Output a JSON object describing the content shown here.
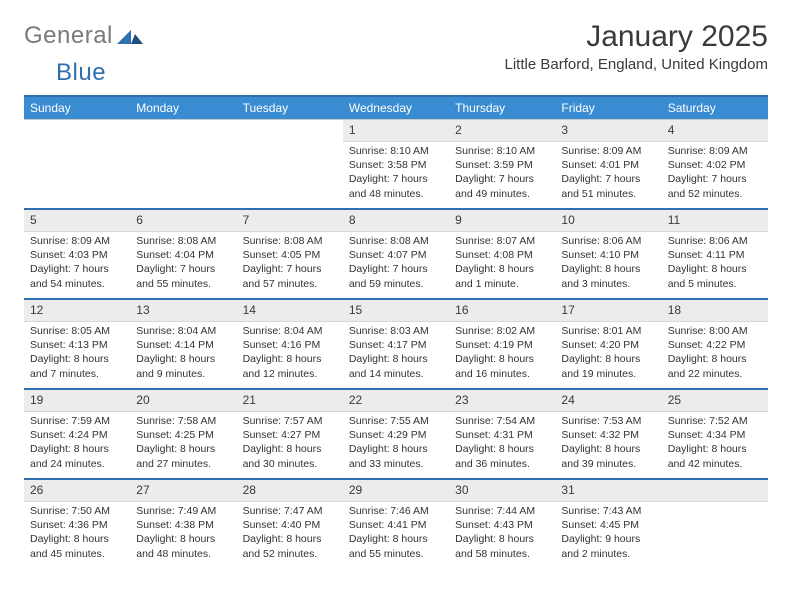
{
  "brand": {
    "text1": "General",
    "text2": "Blue"
  },
  "title": "January 2025",
  "subtitle": "Little Barford, England, United Kingdom",
  "colors": {
    "header_bg": "#3a8cd2",
    "accent_rule": "#2f6fb0",
    "daynum_bg": "#ececec",
    "text": "#333333"
  },
  "weekdays": [
    "Sunday",
    "Monday",
    "Tuesday",
    "Wednesday",
    "Thursday",
    "Friday",
    "Saturday"
  ],
  "weeks": [
    [
      null,
      null,
      null,
      {
        "n": "1",
        "sunrise": "8:10 AM",
        "sunset": "3:58 PM",
        "daylight": "7 hours and 48 minutes."
      },
      {
        "n": "2",
        "sunrise": "8:10 AM",
        "sunset": "3:59 PM",
        "daylight": "7 hours and 49 minutes."
      },
      {
        "n": "3",
        "sunrise": "8:09 AM",
        "sunset": "4:01 PM",
        "daylight": "7 hours and 51 minutes."
      },
      {
        "n": "4",
        "sunrise": "8:09 AM",
        "sunset": "4:02 PM",
        "daylight": "7 hours and 52 minutes."
      }
    ],
    [
      {
        "n": "5",
        "sunrise": "8:09 AM",
        "sunset": "4:03 PM",
        "daylight": "7 hours and 54 minutes."
      },
      {
        "n": "6",
        "sunrise": "8:08 AM",
        "sunset": "4:04 PM",
        "daylight": "7 hours and 55 minutes."
      },
      {
        "n": "7",
        "sunrise": "8:08 AM",
        "sunset": "4:05 PM",
        "daylight": "7 hours and 57 minutes."
      },
      {
        "n": "8",
        "sunrise": "8:08 AM",
        "sunset": "4:07 PM",
        "daylight": "7 hours and 59 minutes."
      },
      {
        "n": "9",
        "sunrise": "8:07 AM",
        "sunset": "4:08 PM",
        "daylight": "8 hours and 1 minute."
      },
      {
        "n": "10",
        "sunrise": "8:06 AM",
        "sunset": "4:10 PM",
        "daylight": "8 hours and 3 minutes."
      },
      {
        "n": "11",
        "sunrise": "8:06 AM",
        "sunset": "4:11 PM",
        "daylight": "8 hours and 5 minutes."
      }
    ],
    [
      {
        "n": "12",
        "sunrise": "8:05 AM",
        "sunset": "4:13 PM",
        "daylight": "8 hours and 7 minutes."
      },
      {
        "n": "13",
        "sunrise": "8:04 AM",
        "sunset": "4:14 PM",
        "daylight": "8 hours and 9 minutes."
      },
      {
        "n": "14",
        "sunrise": "8:04 AM",
        "sunset": "4:16 PM",
        "daylight": "8 hours and 12 minutes."
      },
      {
        "n": "15",
        "sunrise": "8:03 AM",
        "sunset": "4:17 PM",
        "daylight": "8 hours and 14 minutes."
      },
      {
        "n": "16",
        "sunrise": "8:02 AM",
        "sunset": "4:19 PM",
        "daylight": "8 hours and 16 minutes."
      },
      {
        "n": "17",
        "sunrise": "8:01 AM",
        "sunset": "4:20 PM",
        "daylight": "8 hours and 19 minutes."
      },
      {
        "n": "18",
        "sunrise": "8:00 AM",
        "sunset": "4:22 PM",
        "daylight": "8 hours and 22 minutes."
      }
    ],
    [
      {
        "n": "19",
        "sunrise": "7:59 AM",
        "sunset": "4:24 PM",
        "daylight": "8 hours and 24 minutes."
      },
      {
        "n": "20",
        "sunrise": "7:58 AM",
        "sunset": "4:25 PM",
        "daylight": "8 hours and 27 minutes."
      },
      {
        "n": "21",
        "sunrise": "7:57 AM",
        "sunset": "4:27 PM",
        "daylight": "8 hours and 30 minutes."
      },
      {
        "n": "22",
        "sunrise": "7:55 AM",
        "sunset": "4:29 PM",
        "daylight": "8 hours and 33 minutes."
      },
      {
        "n": "23",
        "sunrise": "7:54 AM",
        "sunset": "4:31 PM",
        "daylight": "8 hours and 36 minutes."
      },
      {
        "n": "24",
        "sunrise": "7:53 AM",
        "sunset": "4:32 PM",
        "daylight": "8 hours and 39 minutes."
      },
      {
        "n": "25",
        "sunrise": "7:52 AM",
        "sunset": "4:34 PM",
        "daylight": "8 hours and 42 minutes."
      }
    ],
    [
      {
        "n": "26",
        "sunrise": "7:50 AM",
        "sunset": "4:36 PM",
        "daylight": "8 hours and 45 minutes."
      },
      {
        "n": "27",
        "sunrise": "7:49 AM",
        "sunset": "4:38 PM",
        "daylight": "8 hours and 48 minutes."
      },
      {
        "n": "28",
        "sunrise": "7:47 AM",
        "sunset": "4:40 PM",
        "daylight": "8 hours and 52 minutes."
      },
      {
        "n": "29",
        "sunrise": "7:46 AM",
        "sunset": "4:41 PM",
        "daylight": "8 hours and 55 minutes."
      },
      {
        "n": "30",
        "sunrise": "7:44 AM",
        "sunset": "4:43 PM",
        "daylight": "8 hours and 58 minutes."
      },
      {
        "n": "31",
        "sunrise": "7:43 AM",
        "sunset": "4:45 PM",
        "daylight": "9 hours and 2 minutes."
      },
      null
    ]
  ],
  "labels": {
    "sunrise": "Sunrise:",
    "sunset": "Sunset:",
    "daylight": "Daylight:"
  }
}
